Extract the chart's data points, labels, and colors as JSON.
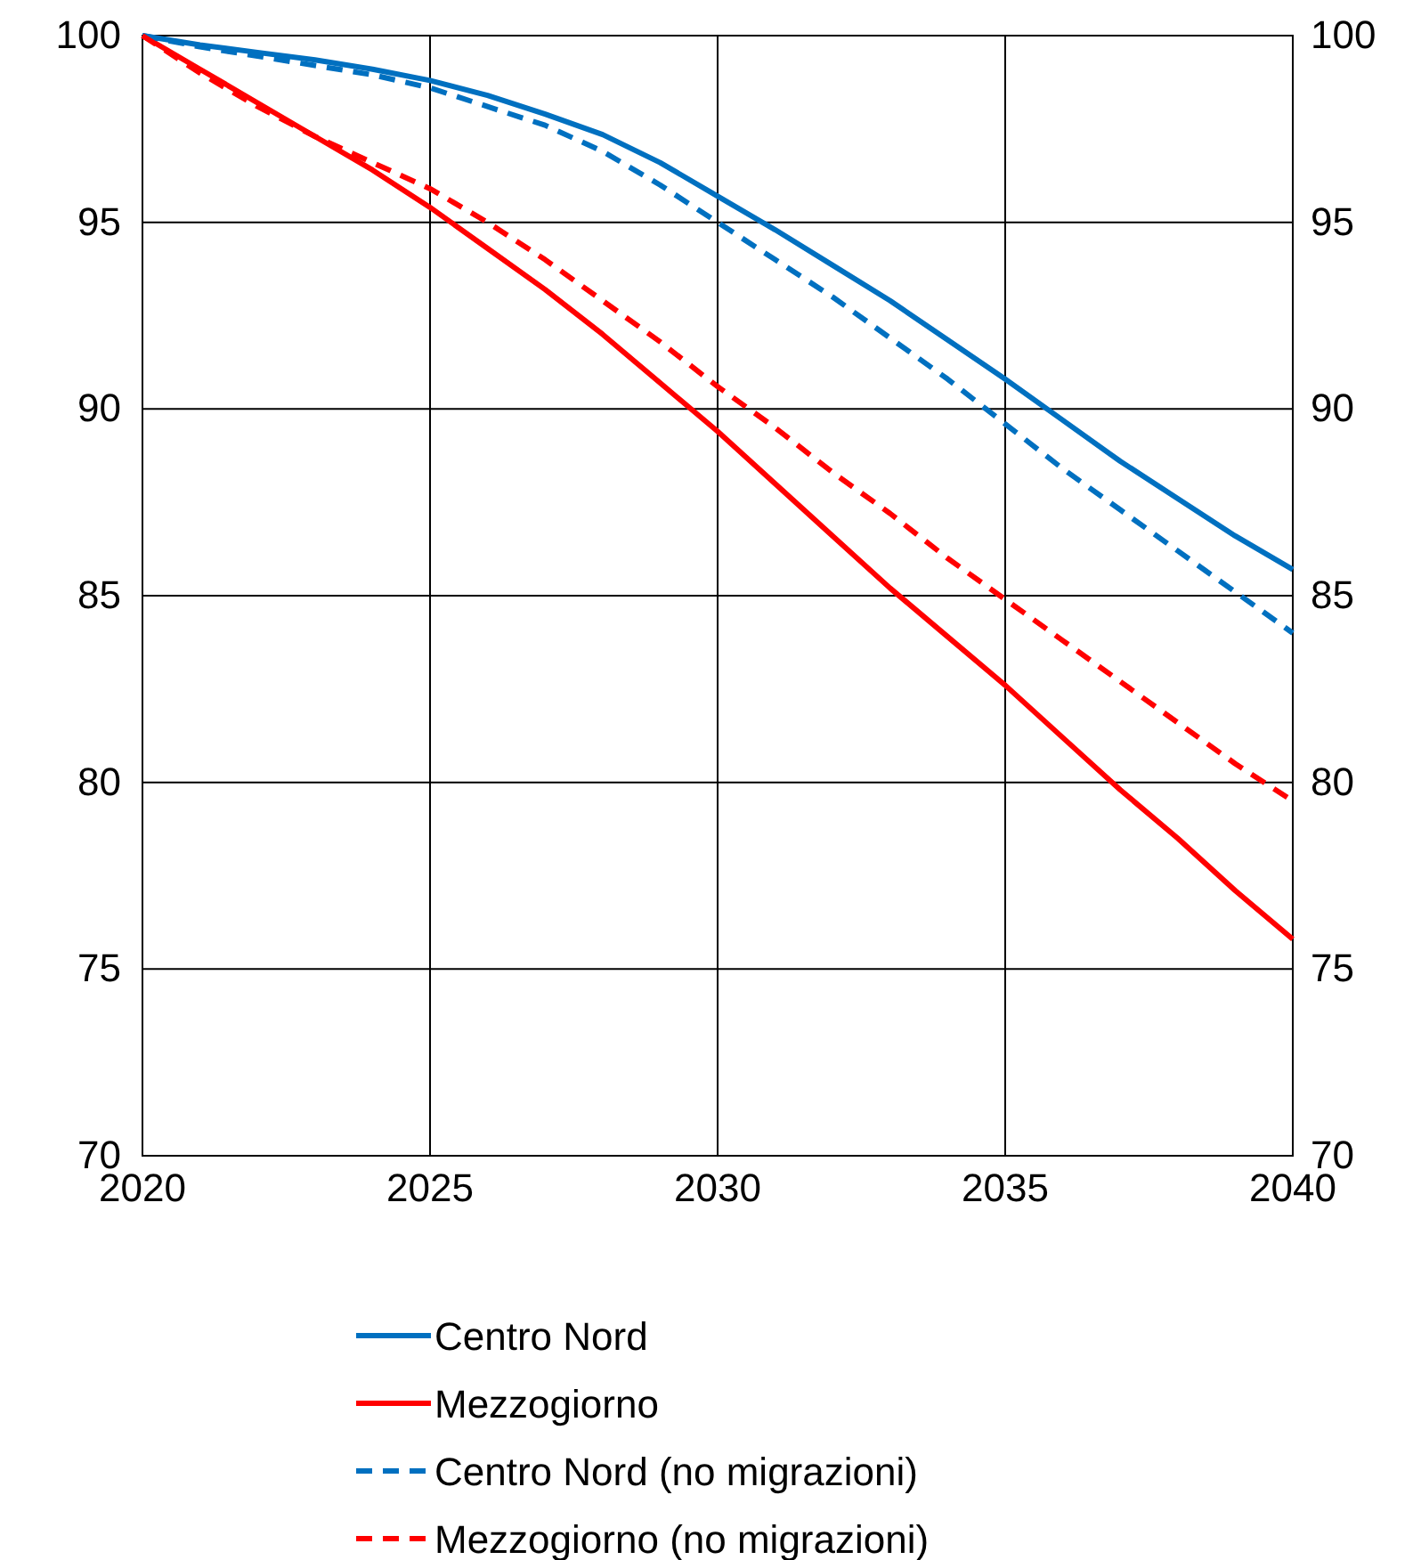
{
  "chart_data": {
    "type": "line",
    "x": [
      2020,
      2021,
      2022,
      2023,
      2024,
      2025,
      2026,
      2027,
      2028,
      2029,
      2030,
      2031,
      2032,
      2033,
      2034,
      2035,
      2036,
      2037,
      2038,
      2039,
      2040
    ],
    "xlim": [
      2020,
      2040
    ],
    "xticks": [
      2020,
      2025,
      2030,
      2035,
      2040
    ],
    "ylim": [
      70,
      100
    ],
    "yticks": [
      70,
      75,
      80,
      85,
      90,
      95,
      100
    ],
    "y2lim": [
      70,
      100
    ],
    "y2ticks": [
      70,
      75,
      80,
      85,
      90,
      95,
      100
    ],
    "grid": true,
    "legend": "bottom",
    "series": [
      {
        "name": "Centro Nord",
        "color": "#0070c0",
        "line_style": "solid",
        "values": [
          100,
          99.75,
          99.55,
          99.35,
          99.1,
          98.8,
          98.4,
          97.9,
          97.35,
          96.6,
          95.7,
          94.8,
          93.85,
          92.9,
          91.85,
          90.8,
          89.7,
          88.6,
          87.6,
          86.6,
          85.7
        ]
      },
      {
        "name": "Mezzogiorno",
        "color": "#ff0000",
        "line_style": "solid",
        "values": [
          100,
          99.1,
          98.2,
          97.3,
          96.4,
          95.4,
          94.3,
          93.2,
          92.0,
          90.7,
          89.4,
          88.0,
          86.6,
          85.2,
          83.9,
          82.6,
          81.2,
          79.8,
          78.5,
          77.1,
          75.8
        ]
      },
      {
        "name": "Centro Nord (no migrazioni)",
        "color": "#0070c0",
        "line_style": "dashed",
        "values": [
          100,
          99.7,
          99.45,
          99.2,
          98.95,
          98.6,
          98.1,
          97.6,
          96.9,
          96.0,
          95.0,
          94.0,
          93.0,
          91.9,
          90.8,
          89.6,
          88.4,
          87.3,
          86.2,
          85.1,
          84.0
        ]
      },
      {
        "name": "Mezzogiorno (no migrazioni)",
        "color": "#ff0000",
        "line_style": "dashed",
        "values": [
          100,
          99.0,
          98.1,
          97.3,
          96.6,
          95.9,
          95.0,
          94.0,
          92.9,
          91.8,
          90.6,
          89.5,
          88.3,
          87.2,
          86.0,
          84.9,
          83.8,
          82.7,
          81.6,
          80.5,
          79.5
        ]
      }
    ]
  }
}
